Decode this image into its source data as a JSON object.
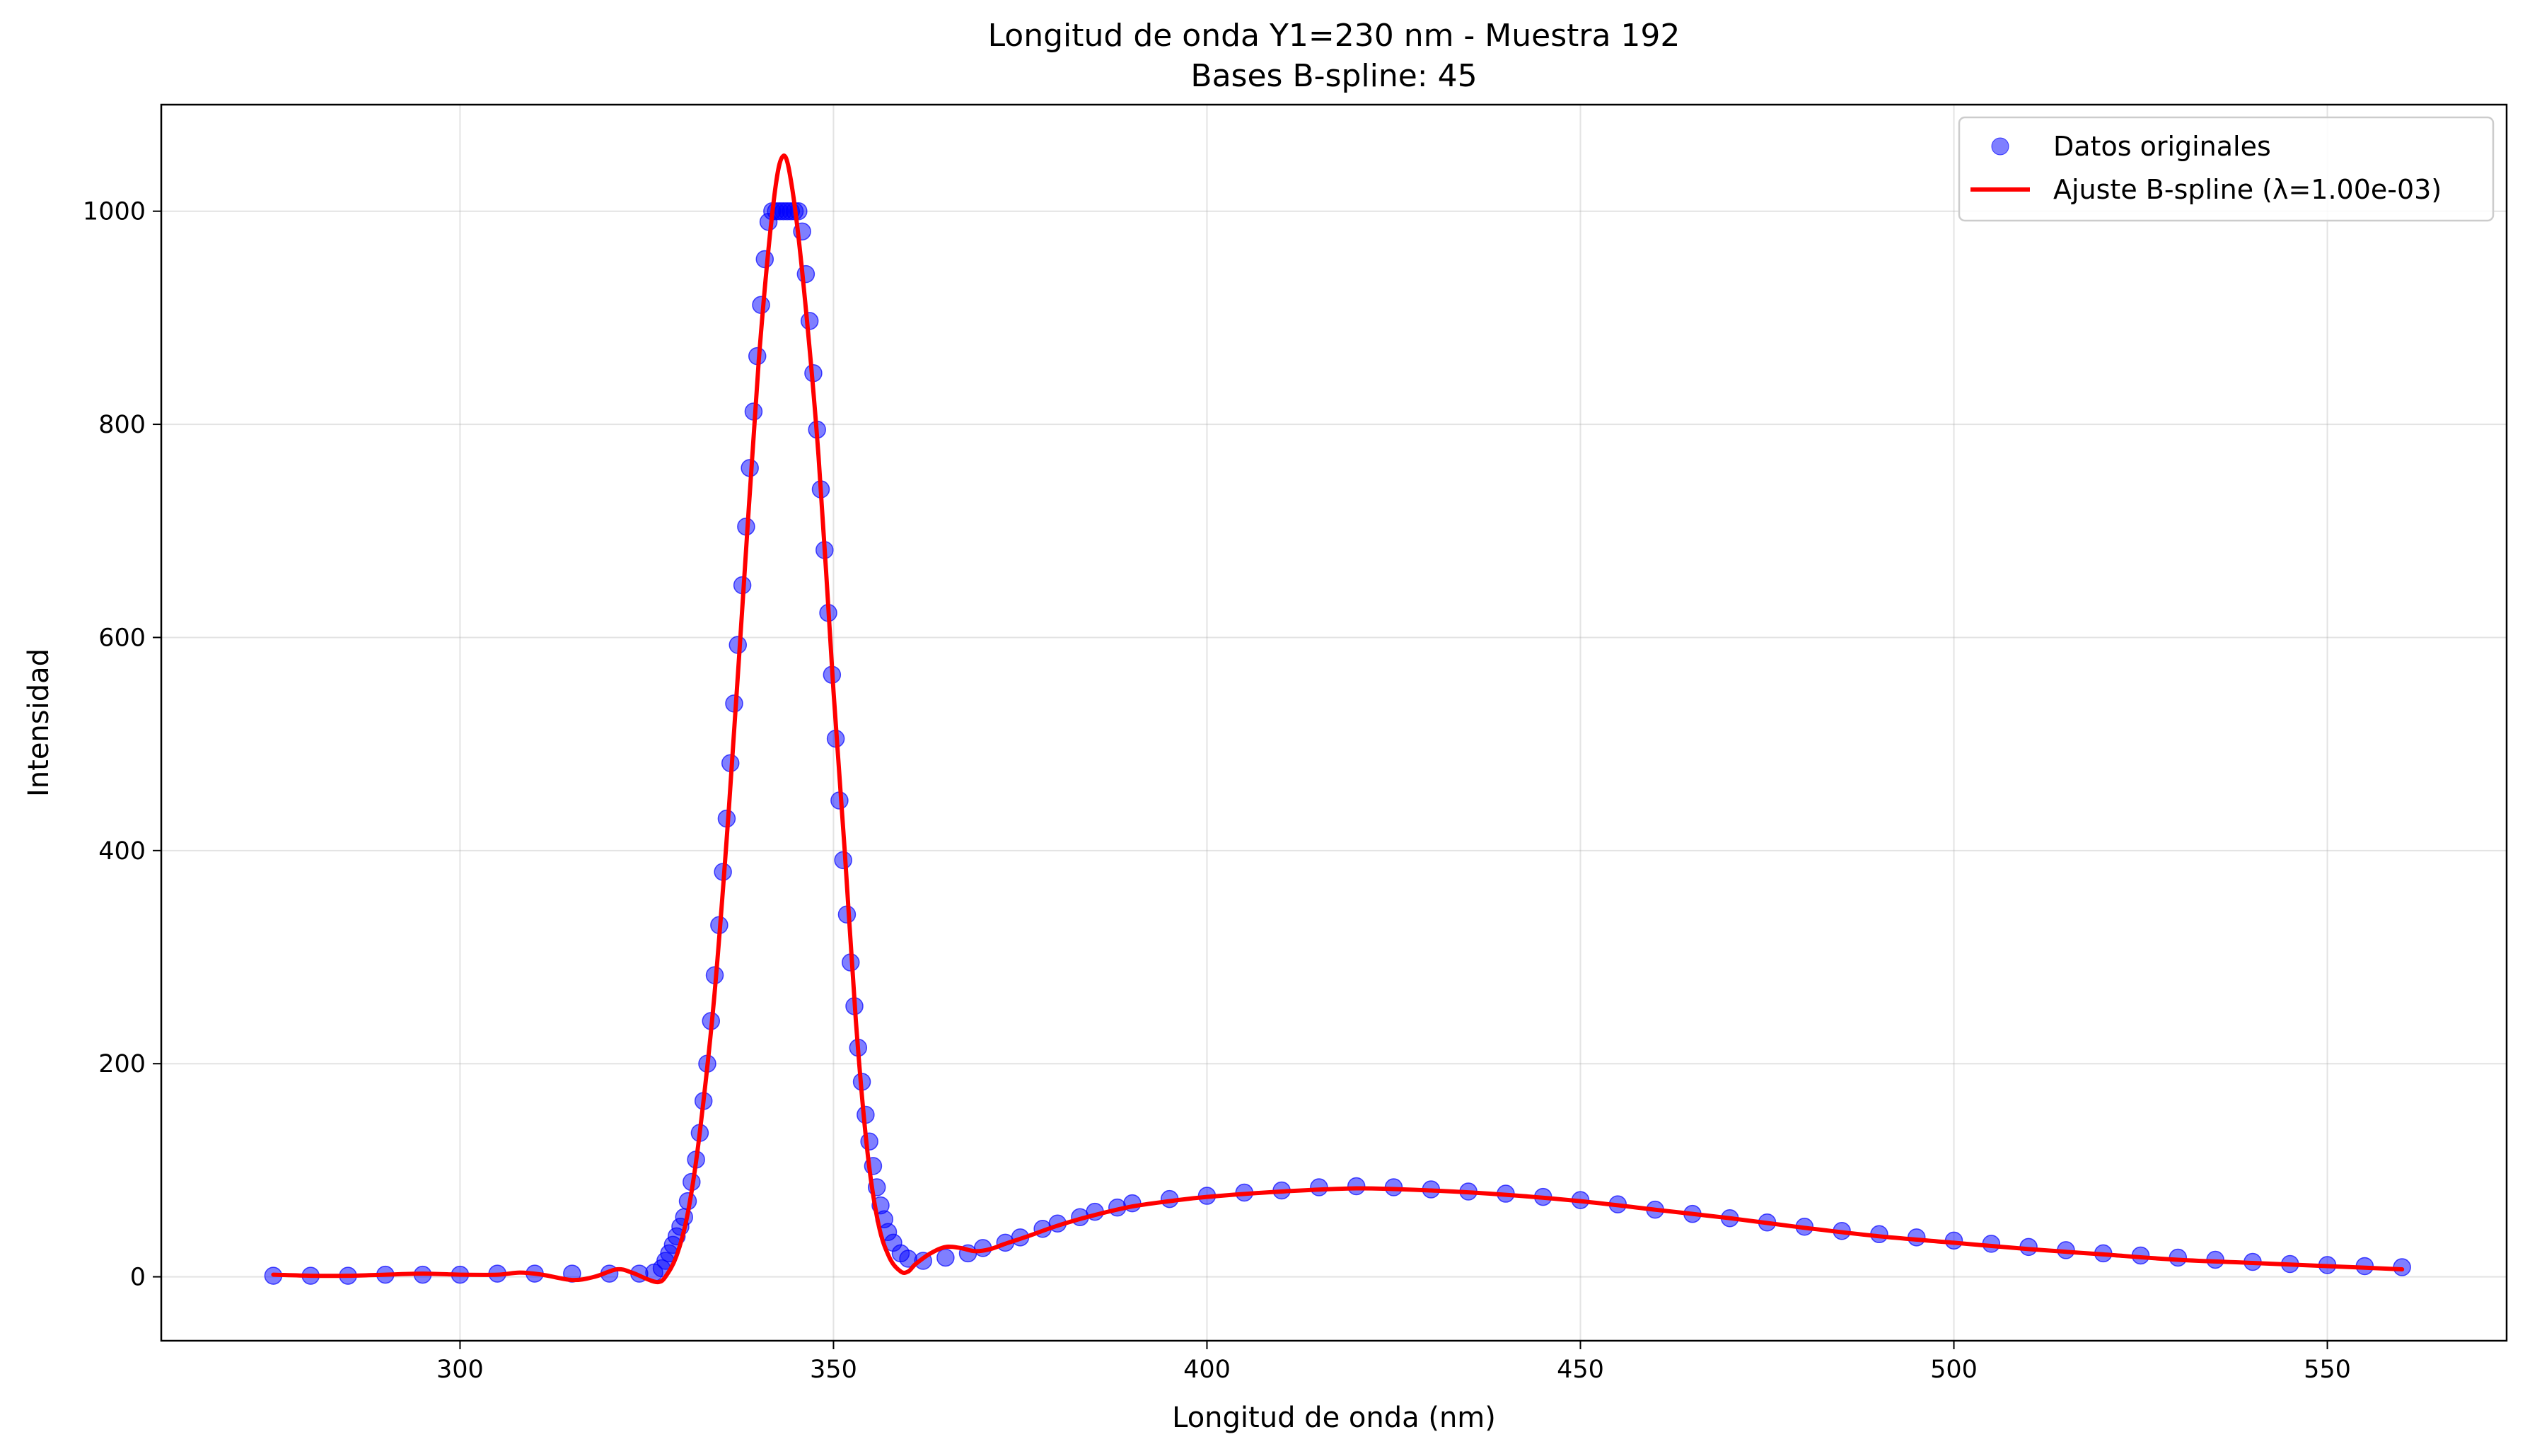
{
  "chart_data": {
    "type": "scatter",
    "title": "Longitud de onda Y1=230 nm - Muestra 192",
    "subtitle": "Bases B-spline: 45",
    "xlabel": "Longitud de onda (nm)",
    "ylabel": "Intensidad",
    "xlim": [
      260,
      574
    ],
    "ylim": [
      -60,
      1100
    ],
    "xticks": [
      300,
      350,
      400,
      450,
      500,
      550
    ],
    "yticks": [
      0,
      200,
      400,
      600,
      800,
      1000
    ],
    "grid": true,
    "legend_position": "top-right",
    "series": [
      {
        "name": "Datos originales",
        "kind": "scatter",
        "color": "#0000ff",
        "points": [
          [
            275,
            1
          ],
          [
            280,
            1
          ],
          [
            285,
            1
          ],
          [
            290,
            2
          ],
          [
            295,
            2
          ],
          [
            300,
            2
          ],
          [
            305,
            3
          ],
          [
            310,
            3
          ],
          [
            315,
            3
          ],
          [
            320,
            3
          ],
          [
            324,
            3
          ],
          [
            326,
            4
          ],
          [
            327,
            8
          ],
          [
            327.5,
            15
          ],
          [
            328,
            22
          ],
          [
            328.5,
            30
          ],
          [
            329,
            38
          ],
          [
            329.5,
            47
          ],
          [
            330,
            56
          ],
          [
            330.5,
            71
          ],
          [
            331,
            89
          ],
          [
            331.6,
            110
          ],
          [
            332.1,
            135
          ],
          [
            332.6,
            165
          ],
          [
            333.1,
            200
          ],
          [
            333.6,
            240
          ],
          [
            334.1,
            283
          ],
          [
            334.7,
            330
          ],
          [
            335.2,
            380
          ],
          [
            335.7,
            430
          ],
          [
            336.2,
            482
          ],
          [
            336.7,
            538
          ],
          [
            337.2,
            593
          ],
          [
            337.8,
            649
          ],
          [
            338.3,
            704
          ],
          [
            338.8,
            759
          ],
          [
            339.3,
            812
          ],
          [
            339.8,
            864
          ],
          [
            340.3,
            912
          ],
          [
            340.8,
            955
          ],
          [
            341.3,
            990
          ],
          [
            341.8,
            1000
          ],
          [
            342.3,
            1000
          ],
          [
            342.8,
            1000
          ],
          [
            343.3,
            1000
          ],
          [
            343.8,
            1000
          ],
          [
            344.3,
            1000
          ],
          [
            344.8,
            1000
          ],
          [
            345.3,
            1000
          ],
          [
            345.8,
            981
          ],
          [
            346.3,
            941
          ],
          [
            346.8,
            897
          ],
          [
            347.3,
            848
          ],
          [
            347.8,
            795
          ],
          [
            348.3,
            739
          ],
          [
            348.8,
            682
          ],
          [
            349.3,
            623
          ],
          [
            349.8,
            565
          ],
          [
            350.3,
            505
          ],
          [
            350.8,
            447
          ],
          [
            351.3,
            391
          ],
          [
            351.8,
            340
          ],
          [
            352.3,
            295
          ],
          [
            352.8,
            254
          ],
          [
            353.3,
            215
          ],
          [
            353.8,
            183
          ],
          [
            354.3,
            152
          ],
          [
            354.8,
            127
          ],
          [
            355.3,
            104
          ],
          [
            355.8,
            84
          ],
          [
            356.3,
            67
          ],
          [
            356.8,
            54
          ],
          [
            357.3,
            42
          ],
          [
            358,
            32
          ],
          [
            359,
            22
          ],
          [
            360,
            17
          ],
          [
            362,
            15
          ],
          [
            365,
            18
          ],
          [
            368,
            22
          ],
          [
            370,
            27
          ],
          [
            373,
            32
          ],
          [
            375,
            37
          ],
          [
            378,
            45
          ],
          [
            380,
            50
          ],
          [
            383,
            56
          ],
          [
            385,
            61
          ],
          [
            388,
            65
          ],
          [
            390,
            69
          ],
          [
            395,
            73
          ],
          [
            400,
            76
          ],
          [
            405,
            79
          ],
          [
            410,
            81
          ],
          [
            415,
            84
          ],
          [
            420,
            85
          ],
          [
            425,
            84
          ],
          [
            430,
            82
          ],
          [
            435,
            80
          ],
          [
            440,
            78
          ],
          [
            445,
            75
          ],
          [
            450,
            72
          ],
          [
            455,
            68
          ],
          [
            460,
            63
          ],
          [
            465,
            59
          ],
          [
            470,
            55
          ],
          [
            475,
            51
          ],
          [
            480,
            47
          ],
          [
            485,
            43
          ],
          [
            490,
            40
          ],
          [
            495,
            37
          ],
          [
            500,
            34
          ],
          [
            505,
            31
          ],
          [
            510,
            28
          ],
          [
            515,
            25
          ],
          [
            520,
            22
          ],
          [
            525,
            20
          ],
          [
            530,
            18
          ],
          [
            535,
            16
          ],
          [
            540,
            14
          ],
          [
            545,
            12
          ],
          [
            550,
            11
          ],
          [
            555,
            10
          ],
          [
            560,
            9
          ]
        ]
      },
      {
        "name": "Ajuste B-spline (λ=1.00e-03)",
        "kind": "line",
        "color": "#ff0000",
        "points": [
          [
            275,
            2
          ],
          [
            280,
            1
          ],
          [
            285,
            1
          ],
          [
            290,
            2
          ],
          [
            295,
            3
          ],
          [
            300,
            2
          ],
          [
            305,
            2
          ],
          [
            308,
            4
          ],
          [
            311,
            2
          ],
          [
            315,
            -3
          ],
          [
            318,
            0
          ],
          [
            321,
            7
          ],
          [
            323,
            4
          ],
          [
            325,
            -2
          ],
          [
            326.5,
            -5
          ],
          [
            327.5,
            0
          ],
          [
            329,
            20
          ],
          [
            330.5,
            60
          ],
          [
            332,
            130
          ],
          [
            334,
            260
          ],
          [
            336,
            440
          ],
          [
            338,
            650
          ],
          [
            340,
            860
          ],
          [
            342,
            1010
          ],
          [
            343.3,
            1052
          ],
          [
            344.5,
            1020
          ],
          [
            346,
            930
          ],
          [
            348,
            770
          ],
          [
            350,
            550
          ],
          [
            351.5,
            400
          ],
          [
            353,
            240
          ],
          [
            354.5,
            120
          ],
          [
            356,
            50
          ],
          [
            357.5,
            18
          ],
          [
            359,
            5
          ],
          [
            360,
            5
          ],
          [
            361,
            12
          ],
          [
            363,
            22
          ],
          [
            365,
            28
          ],
          [
            367,
            27
          ],
          [
            369,
            24
          ],
          [
            371,
            26
          ],
          [
            373,
            31
          ],
          [
            376,
            38
          ],
          [
            380,
            48
          ],
          [
            385,
            58
          ],
          [
            390,
            66
          ],
          [
            395,
            71
          ],
          [
            400,
            75
          ],
          [
            410,
            80
          ],
          [
            420,
            83
          ],
          [
            430,
            81
          ],
          [
            440,
            77
          ],
          [
            450,
            71
          ],
          [
            460,
            63
          ],
          [
            470,
            55
          ],
          [
            480,
            46
          ],
          [
            490,
            38
          ],
          [
            500,
            32
          ],
          [
            510,
            26
          ],
          [
            520,
            21
          ],
          [
            530,
            16
          ],
          [
            540,
            13
          ],
          [
            550,
            10
          ],
          [
            560,
            7
          ]
        ]
      }
    ]
  }
}
